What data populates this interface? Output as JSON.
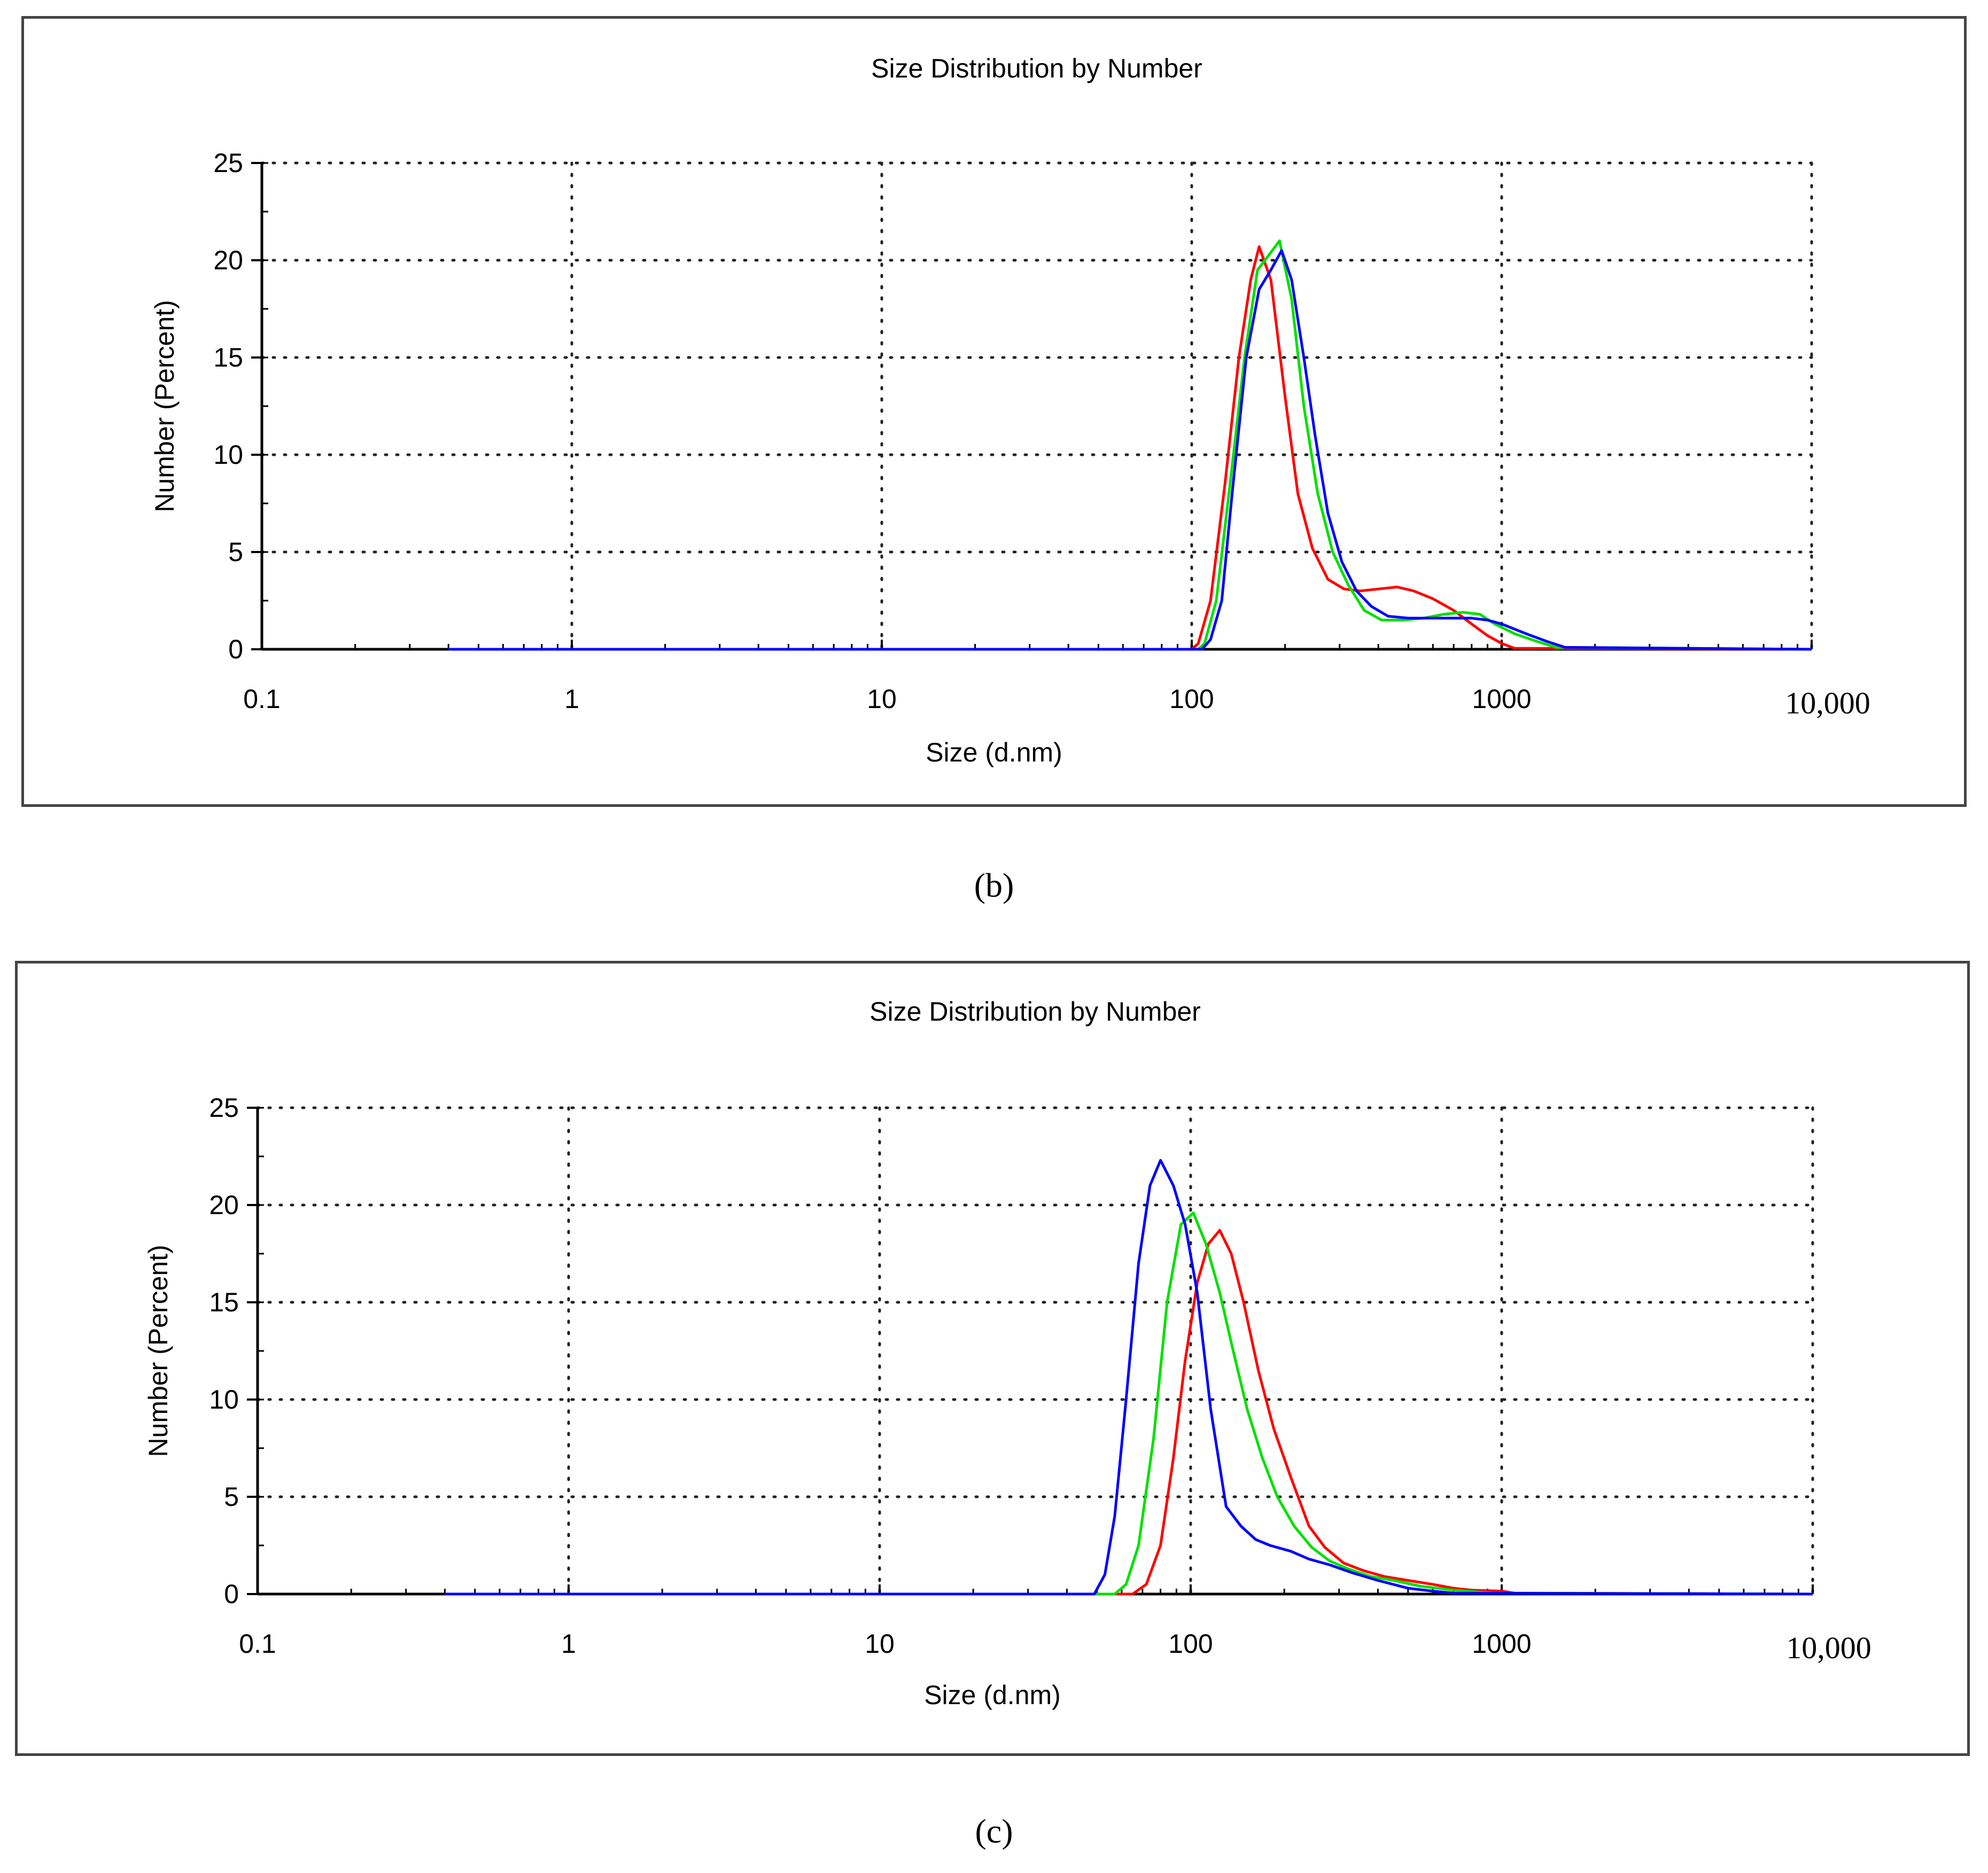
{
  "panels": [
    {
      "caption": "(b)",
      "chart_data": {
        "type": "line",
        "title": "Size Distribution by Number",
        "xlabel": "Size (d.nm)",
        "ylabel": "Number (Percent)",
        "xscale": "log",
        "xlim": [
          0.1,
          10000
        ],
        "ylim": [
          0,
          25
        ],
        "grid": true,
        "x_ticks": [
          0.1,
          1,
          10,
          100,
          1000,
          10000
        ],
        "x_tick_labels": [
          "0.1",
          "1",
          "10",
          "100",
          "1000",
          "10,000"
        ],
        "y_ticks": [
          0,
          5,
          10,
          15,
          20,
          25
        ],
        "y_tick_labels": [
          "0",
          "5",
          "10",
          "15",
          "20",
          "25"
        ],
        "series": [
          {
            "name": "red",
            "color": "#ff0000",
            "x": [
              0.4,
              100,
              105,
              115,
              128,
              142,
              155,
              165,
              180,
              200,
              220,
              245,
              275,
              310,
              350,
              400,
              460,
              520,
              600,
              700,
              800,
              900,
              1000,
              1100,
              10000
            ],
            "y": [
              0,
              0,
              0.3,
              2.5,
              8.5,
              15,
              19,
              20.7,
              19,
              13,
              8,
              5.2,
              3.6,
              3.1,
              3.0,
              3.1,
              3.2,
              3.0,
              2.6,
              2.0,
              1.3,
              0.7,
              0.3,
              0.05,
              0
            ]
          },
          {
            "name": "green",
            "color": "#00e000",
            "x": [
              0.4,
              105,
              110,
              120,
              133,
              148,
              163,
              178,
              192,
              210,
              230,
              255,
              285,
              320,
              360,
              410,
              480,
              560,
              650,
              750,
              850,
              950,
              1100,
              1300,
              1500,
              10000
            ],
            "y": [
              0,
              0,
              0.3,
              2.5,
              8.5,
              15,
              19.5,
              20.3,
              21,
              18,
              12.5,
              8,
              5,
              3.3,
              2,
              1.5,
              1.5,
              1.6,
              1.8,
              1.9,
              1.8,
              1.3,
              0.8,
              0.4,
              0.1,
              0
            ]
          },
          {
            "name": "blue",
            "color": "#0000ff",
            "x": [
              0.4,
              108,
              115,
              125,
              135,
              150,
              165,
              180,
              195,
              210,
              230,
              250,
              275,
              305,
              340,
              380,
              430,
              500,
              600,
              700,
              800,
              900,
              1000,
              1200,
              1400,
              1600,
              10000
            ],
            "y": [
              0,
              0,
              0.5,
              2.5,
              8,
              15,
              18.5,
              19.5,
              20.5,
              19,
              15,
              11,
              7,
              4.5,
              3,
              2.2,
              1.7,
              1.6,
              1.6,
              1.6,
              1.6,
              1.5,
              1.3,
              0.8,
              0.4,
              0.1,
              0
            ]
          }
        ]
      }
    },
    {
      "caption": "(c)",
      "chart_data": {
        "type": "line",
        "title": "Size Distribution by Number",
        "xlabel": "Size (d.nm)",
        "ylabel": "Number (Percent)",
        "xscale": "log",
        "xlim": [
          0.1,
          10000
        ],
        "ylim": [
          0,
          25
        ],
        "grid": true,
        "x_ticks": [
          0.1,
          1,
          10,
          100,
          1000,
          10000
        ],
        "x_tick_labels": [
          "0.1",
          "1",
          "10",
          "100",
          "1000",
          "10,000"
        ],
        "y_ticks": [
          0,
          5,
          10,
          15,
          20,
          25
        ],
        "y_tick_labels": [
          "0",
          "5",
          "10",
          "15",
          "20",
          "25"
        ],
        "series": [
          {
            "name": "red",
            "color": "#ff0000",
            "x": [
              0.4,
              65,
              72,
              80,
              88,
              96,
              105,
              114,
              124,
              135,
              148,
              165,
              185,
              210,
              240,
              270,
              310,
              360,
              420,
              500,
              600,
              700,
              800,
              1000,
              1100,
              10000
            ],
            "y": [
              0,
              0,
              0.5,
              2.5,
              7,
              12,
              16,
              18,
              18.7,
              17.5,
              15,
              11.5,
              8.5,
              6,
              3.5,
              2.4,
              1.6,
              1.2,
              0.9,
              0.7,
              0.5,
              0.3,
              0.2,
              0.15,
              0.05,
              0
            ]
          },
          {
            "name": "green",
            "color": "#00e000",
            "x": [
              0.4,
              57,
              62,
              68,
              76,
              84,
              93,
              102,
              112,
              124,
              137,
              152,
              170,
              190,
              215,
              245,
              280,
              320,
              380,
              450,
              550,
              700,
              850,
              950,
              10000
            ],
            "y": [
              0,
              0,
              0.5,
              2.5,
              8,
              15,
              19,
              19.6,
              18,
              15.5,
              12.5,
              9.5,
              7,
              5,
              3.5,
              2.4,
              1.7,
              1.3,
              0.9,
              0.7,
              0.4,
              0.2,
              0.1,
              0.05,
              0
            ]
          },
          {
            "name": "blue",
            "color": "#0000ff",
            "x": [
              0.4,
              49,
              53,
              57,
              62,
              68,
              74,
              80,
              88,
              96,
              105,
              116,
              130,
              145,
              162,
              180,
              210,
              240,
              280,
              330,
              400,
              500,
              600,
              700,
              10000
            ],
            "y": [
              0,
              0,
              1,
              4,
              10,
              17,
              21,
              22.3,
              21,
              19,
              15.5,
              9.5,
              4.5,
              3.5,
              2.8,
              2.5,
              2.2,
              1.8,
              1.5,
              1.1,
              0.7,
              0.3,
              0.15,
              0.05,
              0
            ]
          }
        ]
      }
    }
  ]
}
